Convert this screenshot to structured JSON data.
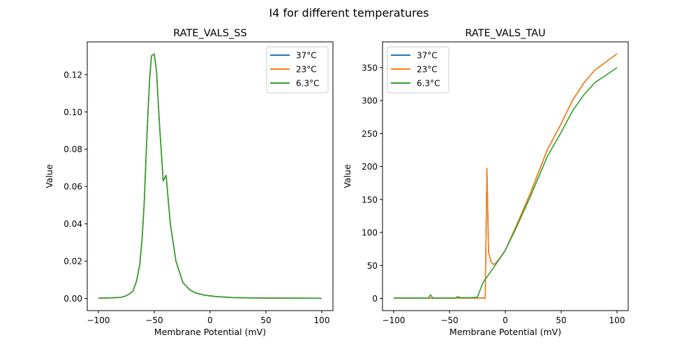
{
  "figure": {
    "suptitle": "I4 for different temperatures"
  },
  "series_colors": {
    "37°C": "#1f77b4",
    "23°C": "#ff7f0e",
    "6.3°C": "#2ca02c"
  },
  "chart_data": [
    {
      "type": "line",
      "title": "RATE_VALS_SS",
      "xlabel": "Membrane Potential (mV)",
      "ylabel": "Value",
      "xlim": [
        -110,
        110
      ],
      "ylim": [
        -0.0065,
        0.1375
      ],
      "xticks": [
        -100,
        -50,
        0,
        50,
        100
      ],
      "xtick_labels": [
        "−100",
        "−50",
        "0",
        "50",
        "100"
      ],
      "yticks": [
        0.0,
        0.02,
        0.04,
        0.06,
        0.08,
        0.1,
        0.12
      ],
      "ytick_labels": [
        "0.00",
        "0.02",
        "0.04",
        "0.06",
        "0.08",
        "0.10",
        "0.12"
      ],
      "legend": {
        "placement": "upper-right",
        "entries": [
          "37°C",
          "23°C",
          "6.3°C"
        ]
      },
      "grid": false,
      "series": [
        {
          "name": "37°C",
          "x": [
            -100,
            -90,
            -80,
            -76,
            -72,
            -69,
            -66,
            -63,
            -61,
            -59,
            -57.5,
            -55.6,
            -54,
            -52.5,
            -50,
            -48,
            -45.6,
            -42,
            -39.4,
            -35.6,
            -30.6,
            -24.4,
            -18,
            -13,
            -5,
            5.6,
            20,
            37,
            60,
            100
          ],
          "y": [
            0.0002,
            0.0003,
            0.0006,
            0.0012,
            0.0025,
            0.004,
            0.009,
            0.018,
            0.031,
            0.051,
            0.074,
            0.1,
            0.119,
            0.13,
            0.131,
            0.122,
            0.096,
            0.063,
            0.066,
            0.04,
            0.02,
            0.0086,
            0.0045,
            0.003,
            0.0018,
            0.001,
            0.0005,
            0.0003,
            0.0002,
            0.0001
          ]
        },
        {
          "name": "23°C",
          "x": [
            -100,
            -90,
            -80,
            -76,
            -72,
            -69,
            -66,
            -63,
            -61,
            -59,
            -57.5,
            -55.6,
            -54,
            -52.5,
            -50,
            -48,
            -45.6,
            -42,
            -39.4,
            -35.6,
            -30.6,
            -24.4,
            -18,
            -13,
            -5,
            5.6,
            20,
            37,
            60,
            100
          ],
          "y": [
            0.0002,
            0.0003,
            0.0006,
            0.0012,
            0.0025,
            0.004,
            0.009,
            0.018,
            0.031,
            0.051,
            0.074,
            0.1,
            0.119,
            0.13,
            0.131,
            0.122,
            0.096,
            0.063,
            0.066,
            0.04,
            0.02,
            0.0086,
            0.0045,
            0.003,
            0.0018,
            0.001,
            0.0005,
            0.0003,
            0.0002,
            0.0001
          ]
        },
        {
          "name": "6.3°C",
          "x": [
            -100,
            -90,
            -80,
            -76,
            -72,
            -69,
            -66,
            -63,
            -61,
            -59,
            -57.5,
            -55.6,
            -54,
            -52.5,
            -50,
            -48,
            -45.6,
            -42,
            -39.4,
            -35.6,
            -30.6,
            -24.4,
            -18,
            -13,
            -5,
            5.6,
            20,
            37,
            60,
            100
          ],
          "y": [
            0.0002,
            0.0003,
            0.0006,
            0.0012,
            0.0025,
            0.004,
            0.009,
            0.018,
            0.031,
            0.051,
            0.074,
            0.1,
            0.119,
            0.13,
            0.131,
            0.122,
            0.096,
            0.063,
            0.066,
            0.04,
            0.02,
            0.0086,
            0.0045,
            0.003,
            0.0018,
            0.001,
            0.0005,
            0.0003,
            0.0002,
            0.0001
          ]
        }
      ]
    },
    {
      "type": "line",
      "title": "RATE_VALS_TAU",
      "xlabel": "Membrane Potential (mV)",
      "ylabel": "Value",
      "xlim": [
        -110,
        110
      ],
      "ylim": [
        -18.5,
        389
      ],
      "xticks": [
        -100,
        -50,
        0,
        50,
        100
      ],
      "xtick_labels": [
        "−100",
        "−50",
        "0",
        "50",
        "100"
      ],
      "yticks": [
        0,
        50,
        100,
        150,
        200,
        250,
        300,
        350
      ],
      "ytick_labels": [
        "0",
        "50",
        "100",
        "150",
        "200",
        "250",
        "300",
        "350"
      ],
      "legend": {
        "placement": "upper-left",
        "entries": [
          "37°C",
          "23°C",
          "6.3°C"
        ]
      },
      "grid": false,
      "series": [
        {
          "name": "37°C",
          "x": [
            -100,
            -70,
            -50,
            -30,
            -18,
            -16.5,
            -15,
            -13,
            -11,
            -9.4,
            -5,
            0,
            10,
            22.5,
            37.5,
            50,
            60,
            70,
            80,
            100
          ],
          "y": [
            0.5,
            0.5,
            0.5,
            0.5,
            0.5,
            197,
            70,
            56,
            52,
            52,
            61,
            73,
            111,
            160,
            225,
            265,
            300,
            326,
            346,
            371
          ]
        },
        {
          "name": "23°C",
          "x": [
            -100,
            -70,
            -50,
            -30,
            -18,
            -16.5,
            -15,
            -13,
            -11,
            -9.4,
            -5,
            0,
            10,
            22.5,
            37.5,
            50,
            60,
            70,
            80,
            100
          ],
          "y": [
            0.5,
            0.5,
            0.5,
            0.5,
            0.5,
            197,
            70,
            56,
            52,
            52,
            61,
            73,
            111,
            160,
            225,
            265,
            300,
            326,
            346,
            371
          ]
        },
        {
          "name": "6.3°C",
          "x": [
            -100,
            -69,
            -67,
            -65,
            -45,
            -43,
            -40,
            -30,
            -25,
            -20,
            -10,
            0,
            10,
            22.5,
            37.5,
            50,
            60,
            70,
            80,
            100
          ],
          "y": [
            0.5,
            0.5,
            5.5,
            0.5,
            0.5,
            2.5,
            1.2,
            1.0,
            2.0,
            24,
            48,
            73,
            108,
            155,
            215,
            252,
            284,
            308,
            327,
            350
          ]
        }
      ]
    }
  ]
}
